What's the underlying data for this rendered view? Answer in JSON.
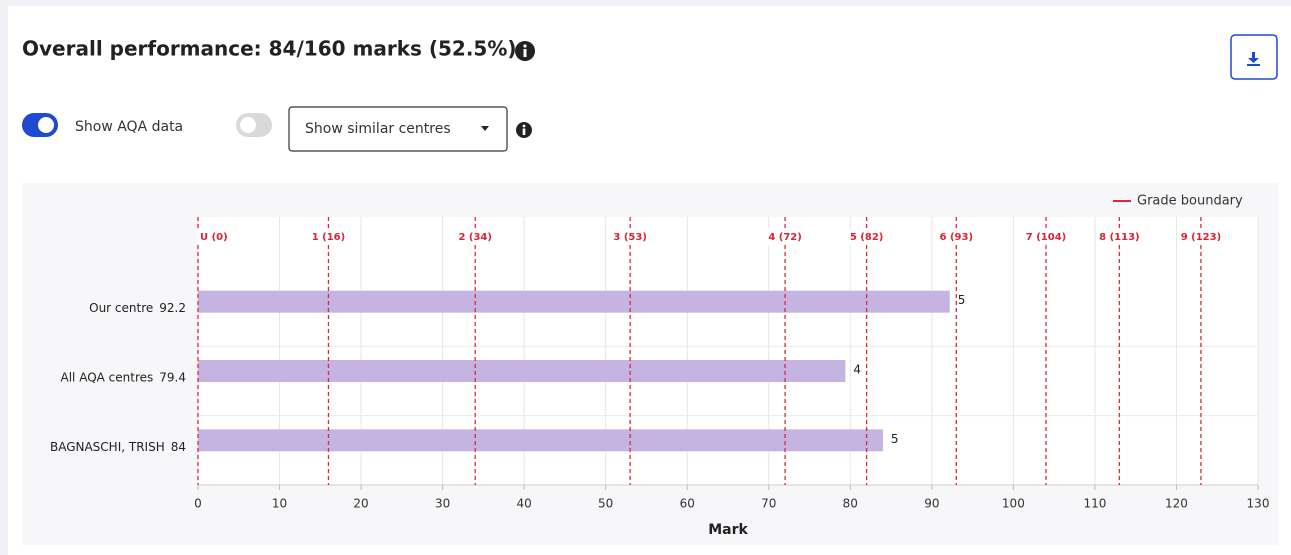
{
  "header": {
    "title": "Overall performance: 84/160 marks (52.5%)"
  },
  "controls": {
    "toggle_label": "Show AQA data",
    "dropdown": "Show similar centres"
  },
  "chart_data": {
    "type": "bar",
    "orientation": "horizontal",
    "categories": [
      "Our centre",
      "All AQA centres",
      "BAGNASCHI, TRISH"
    ],
    "values": [
      92.2,
      79.4,
      84
    ],
    "grade_labels": [
      5,
      4,
      5
    ],
    "color": "#c5b4e1",
    "xlim": [
      0,
      130
    ],
    "xticks": [
      0,
      10,
      20,
      30,
      40,
      50,
      60,
      70,
      80,
      90,
      100,
      110,
      120,
      130
    ],
    "xlabel": "Mark",
    "grid": true,
    "boundaries": [
      {
        "value": 0,
        "label": "U (0)"
      },
      {
        "value": 16,
        "label": "1 (16)"
      },
      {
        "value": 34,
        "label": "2 (34)"
      },
      {
        "value": 53,
        "label": "3 (53)"
      },
      {
        "value": 72,
        "label": "4 (72)"
      },
      {
        "value": 82,
        "label": "5 (82)"
      },
      {
        "value": 93,
        "label": "6 (93)"
      },
      {
        "value": 104,
        "label": "7 (104)"
      },
      {
        "value": 113,
        "label": "8 (113)"
      },
      {
        "value": 123,
        "label": "9 (123)"
      }
    ],
    "boundary_color": "#e0263c",
    "legend": "Grade boundary",
    "legend_position": "top-right"
  }
}
